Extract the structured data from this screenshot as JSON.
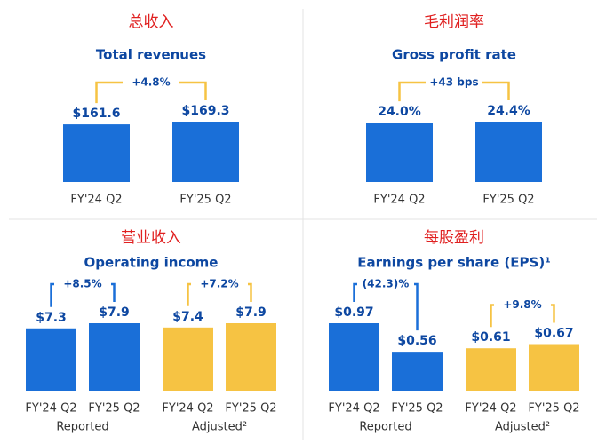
{
  "charts": [
    {
      "type": "bar",
      "title": "总收入",
      "subtitle": "Total revenues",
      "categories": [
        "FY'24 Q2",
        "FY'25 Q2"
      ],
      "series": [
        {
          "color": "#1a6fd8",
          "bracket_color": "#f6c343",
          "values": [
            161.6,
            169.3
          ],
          "value_labels": [
            "$161.6",
            "$169.3"
          ],
          "change": "+4.8%"
        }
      ]
    },
    {
      "type": "bar",
      "title": "毛利润率",
      "subtitle": "Gross profit rate",
      "categories": [
        "FY'24 Q2",
        "FY'25 Q2"
      ],
      "series": [
        {
          "color": "#1a6fd8",
          "bracket_color": "#f6c343",
          "values": [
            24.0,
            24.4
          ],
          "value_labels": [
            "24.0%",
            "24.4%"
          ],
          "change": "+43 bps"
        }
      ]
    },
    {
      "type": "bar",
      "title": "营业收入",
      "subtitle": "Operating income",
      "categories": [
        "FY'24 Q2",
        "FY'25 Q2"
      ],
      "series": [
        {
          "name": "Reported",
          "color": "#1a6fd8",
          "bracket_color": "#1a6fd8",
          "values": [
            7.3,
            7.9
          ],
          "value_labels": [
            "$7.3",
            "$7.9"
          ],
          "change": "+8.5%"
        },
        {
          "name": "Adjusted²",
          "color": "#f6c343",
          "bracket_color": "#f6c343",
          "values": [
            7.4,
            7.9
          ],
          "value_labels": [
            "$7.4",
            "$7.9"
          ],
          "change": "+7.2%"
        }
      ]
    },
    {
      "type": "bar",
      "title": "每股盈利",
      "subtitle": "Earnings per share (EPS)¹",
      "categories": [
        "FY'24 Q2",
        "FY'25 Q2"
      ],
      "series": [
        {
          "name": "Reported",
          "color": "#1a6fd8",
          "bracket_color": "#1a6fd8",
          "values": [
            0.97,
            0.56
          ],
          "value_labels": [
            "$0.97",
            "$0.56"
          ],
          "change": "(42.3)%"
        },
        {
          "name": "Adjusted²",
          "color": "#f6c343",
          "bracket_color": "#f6c343",
          "values": [
            0.61,
            0.67
          ],
          "value_labels": [
            "$0.61",
            "$0.67"
          ],
          "change": "+9.8%"
        }
      ]
    }
  ]
}
